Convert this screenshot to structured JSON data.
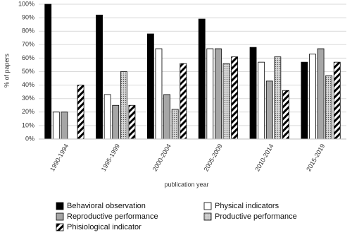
{
  "chart_data": {
    "type": "bar",
    "ylabel": "% of papers",
    "xlabel": "publication year",
    "categories": [
      "1990-1994",
      "1995-1999",
      "2000-2004",
      "2005-2009",
      "2010-2014",
      "2015-2019"
    ],
    "series": [
      {
        "name": "Behavioral observation",
        "color": "#000000",
        "values": [
          100,
          92,
          78,
          89,
          68,
          57
        ]
      },
      {
        "name": "Physical indicators",
        "color": "#ffffff",
        "values": [
          20,
          33,
          67,
          67,
          57,
          63
        ]
      },
      {
        "name": "Reproductive performance",
        "color": "#a6a6a6",
        "values": [
          20,
          25,
          33,
          67,
          43,
          67
        ]
      },
      {
        "name": "Productive performance",
        "color": "#bfbfbf",
        "pattern": "dots",
        "values": [
          0,
          50,
          22,
          56,
          61,
          47
        ]
      },
      {
        "name": "Phisiological indicator",
        "color": "#000000",
        "pattern": "diagonal",
        "values": [
          40,
          25,
          56,
          61,
          36,
          57
        ]
      }
    ],
    "ylim": [
      0,
      100
    ],
    "yticks": [
      {
        "value": 0,
        "label": "0%"
      },
      {
        "value": 10,
        "label": "10%"
      },
      {
        "value": 20,
        "label": "20%"
      },
      {
        "value": 30,
        "label": "30%"
      },
      {
        "value": 40,
        "label": "40%"
      },
      {
        "value": 50,
        "label": "50%"
      },
      {
        "value": 60,
        "label": "60%"
      },
      {
        "value": 70,
        "label": "70%"
      },
      {
        "value": 80,
        "label": "80%"
      },
      {
        "value": 90,
        "label": "90%"
      },
      {
        "value": 100,
        "label": "100%"
      }
    ],
    "grid": true
  }
}
